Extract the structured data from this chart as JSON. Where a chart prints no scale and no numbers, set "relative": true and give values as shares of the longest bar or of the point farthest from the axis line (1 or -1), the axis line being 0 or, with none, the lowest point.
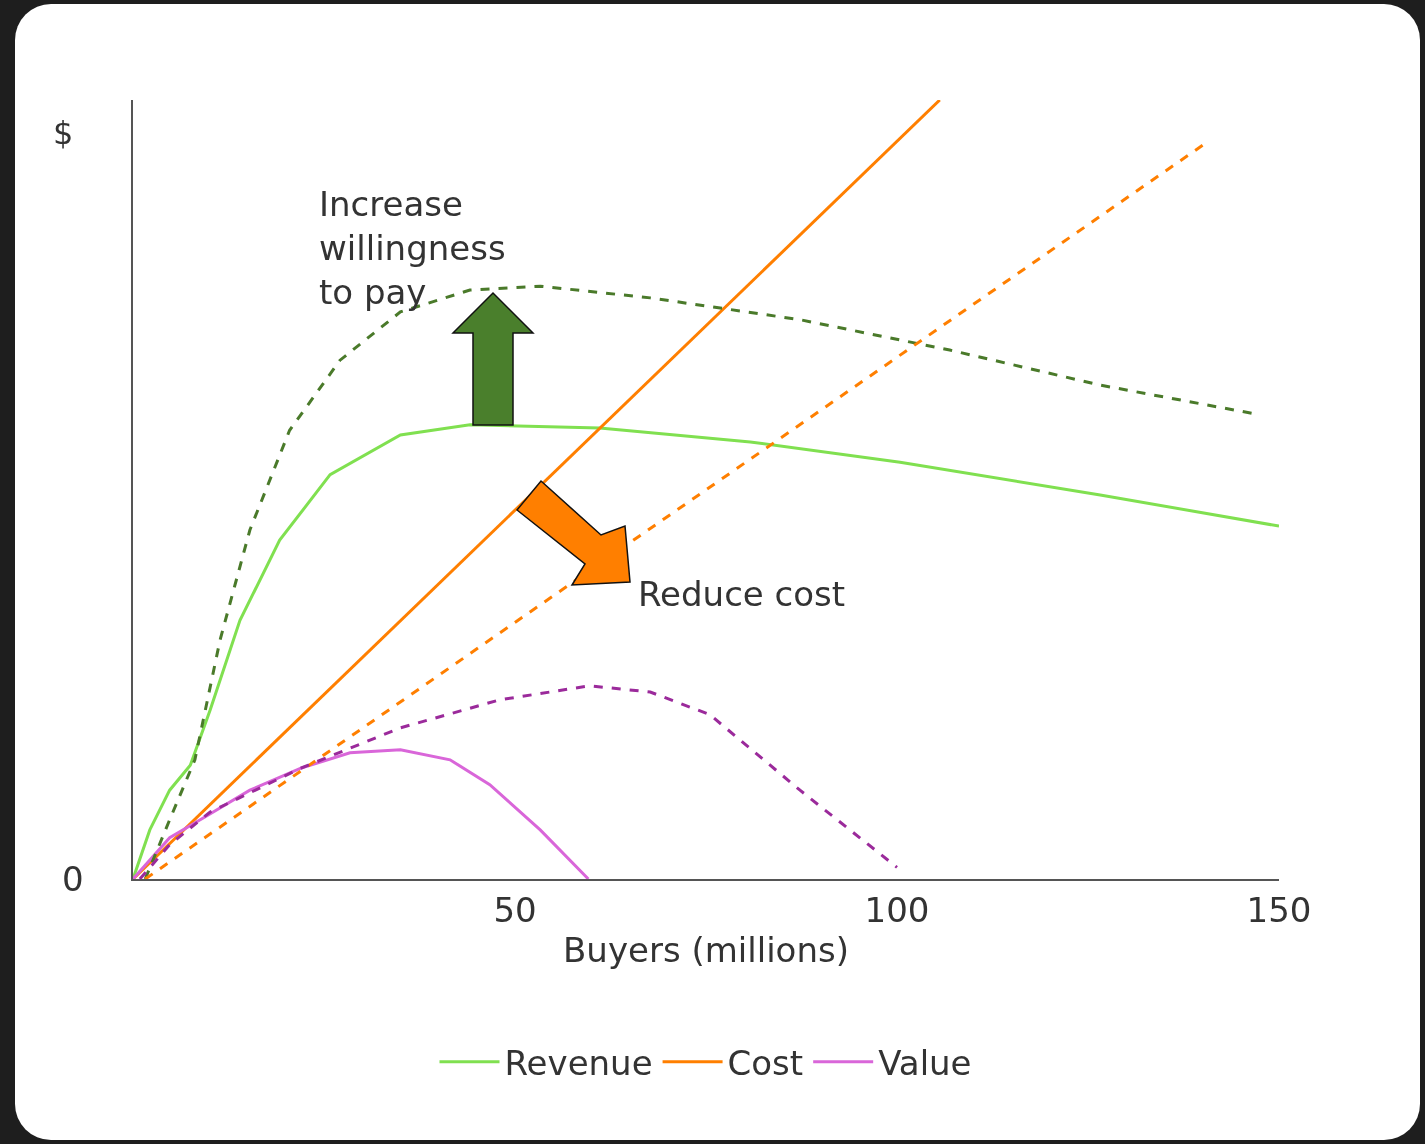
{
  "chart_data": {
    "type": "line",
    "relative": true,
    "xlabel": "Buyers (millions)",
    "ylabel": "$",
    "xlim": [
      0,
      150
    ],
    "xticks": [
      50,
      100,
      150
    ],
    "grid": false,
    "legend": "bottom",
    "marker": "none",
    "annotations": [
      "0",
      "Increase willingness to pay",
      "Reduce cost"
    ],
    "series": [
      {
        "name": "Revenue",
        "color": "#80e050",
        "line_style": "solid",
        "x": [
          0,
          2.2,
          4.8,
          7.5,
          10.1,
          14,
          19.2,
          25.8,
          35,
          44.1,
          61.1,
          80.8,
          100.4,
          126.6,
          150
        ],
        "values": [
          0,
          0.063,
          0.114,
          0.146,
          0.217,
          0.332,
          0.435,
          0.519,
          0.57,
          0.583,
          0.579,
          0.561,
          0.535,
          0.493,
          0.453
        ]
      },
      {
        "name": "Cost",
        "color": "#ff7f00",
        "line_style": "solid",
        "x": [
          0,
          105.6
        ],
        "values": [
          0,
          1
        ]
      },
      {
        "name": "Value",
        "color": "#d966d9",
        "line_style": "solid",
        "x": [
          0,
          4.8,
          8.8,
          15.3,
          21.9,
          28.4,
          35,
          41.5,
          46.7,
          53.3,
          59.6
        ],
        "values": [
          0,
          0.053,
          0.076,
          0.114,
          0.142,
          0.162,
          0.166,
          0.153,
          0.121,
          0.063,
          0
        ]
      },
      {
        "color": "#4a7a2a",
        "line_style": "dashed",
        "x": [
          1.6,
          4.8,
          8.1,
          11.4,
          15.3,
          20.5,
          27.1,
          35,
          44.1,
          53.3,
          67.7,
          87.3,
          106.9,
          126.6,
          146.9
        ],
        "values": [
          0,
          0.076,
          0.153,
          0.307,
          0.448,
          0.576,
          0.666,
          0.728,
          0.756,
          0.761,
          0.746,
          0.718,
          0.679,
          0.634,
          0.597
        ]
      },
      {
        "color": "#ff7f00",
        "line_style": "dashed",
        "x": [
          1.6,
          140.6
        ],
        "values": [
          0,
          0.946
        ]
      },
      {
        "color": "#9b2a9b",
        "line_style": "dashed",
        "x": [
          0.9,
          4.8,
          10.1,
          21.9,
          35,
          48,
          59.8,
          67.7,
          75.5,
          87.3,
          100
        ],
        "values": [
          0,
          0.044,
          0.086,
          0.142,
          0.194,
          0.23,
          0.248,
          0.24,
          0.211,
          0.114,
          0.015
        ]
      }
    ]
  }
}
